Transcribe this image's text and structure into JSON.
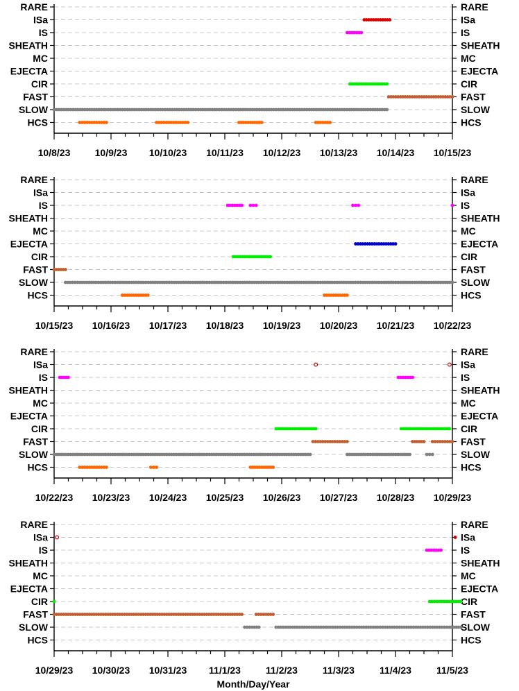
{
  "chart_data": {
    "type": "scatter",
    "categories": [
      "RARE",
      "ISa",
      "IS",
      "SHEATH",
      "MC",
      "EJECTA",
      "CIR",
      "FAST",
      "SLOW",
      "HCS"
    ],
    "xlabel": "Month/Day/Year",
    "grid": true,
    "panels": [
      {
        "x_ticks": [
          "10/8/23",
          "10/9/23",
          "10/10/23",
          "10/11/23",
          "10/12/23",
          "10/13/23",
          "10/14/23",
          "10/15/23"
        ],
        "x_range": [
          0,
          7
        ],
        "series": [
          {
            "category": "ISa",
            "color": "#e00000",
            "segments": [
              [
                5.45,
                5.9
              ]
            ]
          },
          {
            "category": "IS",
            "color": "#ff00ff",
            "segments": [
              [
                5.15,
                5.4
              ]
            ]
          },
          {
            "category": "CIR",
            "color": "#00ee00",
            "segments": [
              [
                5.2,
                5.85
              ]
            ]
          },
          {
            "category": "FAST",
            "color": "#c06030",
            "segments": [
              [
                5.88,
                7.0
              ]
            ]
          },
          {
            "category": "SLOW",
            "color": "#808080",
            "segments": [
              [
                0.0,
                5.85
              ]
            ]
          },
          {
            "category": "HCS",
            "color": "#ff6600",
            "segments": [
              [
                0.45,
                0.92
              ],
              [
                1.8,
                2.35
              ],
              [
                3.25,
                3.65
              ],
              [
                4.6,
                4.85
              ]
            ]
          }
        ]
      },
      {
        "x_ticks": [
          "10/15/23",
          "10/16/23",
          "10/17/23",
          "10/18/23",
          "10/19/23",
          "10/20/23",
          "10/21/23",
          "10/22/23"
        ],
        "x_range": [
          0,
          7
        ],
        "series": [
          {
            "category": "IS",
            "color": "#ff00ff",
            "segments": [
              [
                3.05,
                3.3
              ],
              [
                3.45,
                3.55
              ],
              [
                5.25,
                5.35
              ],
              [
                7.0,
                7.0
              ]
            ]
          },
          {
            "category": "EJECTA",
            "color": "#0000cc",
            "segments": [
              [
                5.3,
                6.0
              ]
            ]
          },
          {
            "category": "CIR",
            "color": "#00ee00",
            "segments": [
              [
                3.15,
                3.8
              ]
            ]
          },
          {
            "category": "FAST",
            "color": "#c06030",
            "segments": [
              [
                0.0,
                0.2
              ]
            ]
          },
          {
            "category": "SLOW",
            "color": "#808080",
            "segments": [
              [
                0.2,
                7.0
              ]
            ]
          },
          {
            "category": "HCS",
            "color": "#ff6600",
            "segments": [
              [
                1.2,
                1.65
              ],
              [
                4.75,
                5.15
              ]
            ]
          }
        ]
      },
      {
        "x_ticks": [
          "10/22/23",
          "10/23/23",
          "10/24/23",
          "10/25/23",
          "10/26/23",
          "10/27/23",
          "10/28/23",
          "10/29/23"
        ],
        "x_range": [
          0,
          7
        ],
        "series": [
          {
            "category": "ISa",
            "color": "#cc0000",
            "open": true,
            "segments": [
              [
                4.6,
                4.6
              ],
              [
                6.95,
                6.95
              ]
            ]
          },
          {
            "category": "IS",
            "color": "#ff00ff",
            "segments": [
              [
                0.1,
                0.25
              ],
              [
                6.05,
                6.3
              ]
            ]
          },
          {
            "category": "CIR",
            "color": "#00ee00",
            "segments": [
              [
                3.9,
                4.6
              ],
              [
                6.1,
                6.95
              ]
            ]
          },
          {
            "category": "FAST",
            "color": "#c06030",
            "segments": [
              [
                4.55,
                5.15
              ],
              [
                6.3,
                6.5
              ],
              [
                6.65,
                7.0
              ]
            ]
          },
          {
            "category": "SLOW",
            "color": "#808080",
            "segments": [
              [
                0.0,
                4.5
              ],
              [
                5.15,
                6.25
              ],
              [
                6.55,
                6.65
              ]
            ]
          },
          {
            "category": "HCS",
            "color": "#ff6600",
            "segments": [
              [
                0.45,
                0.92
              ],
              [
                1.7,
                1.8
              ],
              [
                3.45,
                3.85
              ]
            ]
          }
        ]
      },
      {
        "x_ticks": [
          "10/29/23",
          "10/30/23",
          "10/31/23",
          "11/1/23",
          "11/2/23",
          "11/3/23",
          "11/4/23",
          "11/5/23"
        ],
        "x_range": [
          0,
          7
        ],
        "series": [
          {
            "category": "ISa",
            "color": "#cc0000",
            "open": true,
            "segments": [
              [
                0.05,
                0.05
              ]
            ]
          },
          {
            "category": "ISa",
            "color": "#cc0000",
            "segments": [
              [
                7.05,
                7.05
              ]
            ]
          },
          {
            "category": "IS",
            "color": "#ff00ff",
            "segments": [
              [
                6.55,
                6.8
              ]
            ]
          },
          {
            "category": "CIR",
            "color": "#00ee00",
            "segments": [
              [
                0.0,
                0.0
              ],
              [
                6.6,
                7.15
              ]
            ]
          },
          {
            "category": "FAST",
            "color": "#c06030",
            "segments": [
              [
                0.0,
                3.3
              ],
              [
                3.55,
                3.85
              ]
            ]
          },
          {
            "category": "SLOW",
            "color": "#808080",
            "segments": [
              [
                3.35,
                3.6
              ],
              [
                3.9,
                7.15
              ]
            ]
          }
        ]
      }
    ]
  }
}
